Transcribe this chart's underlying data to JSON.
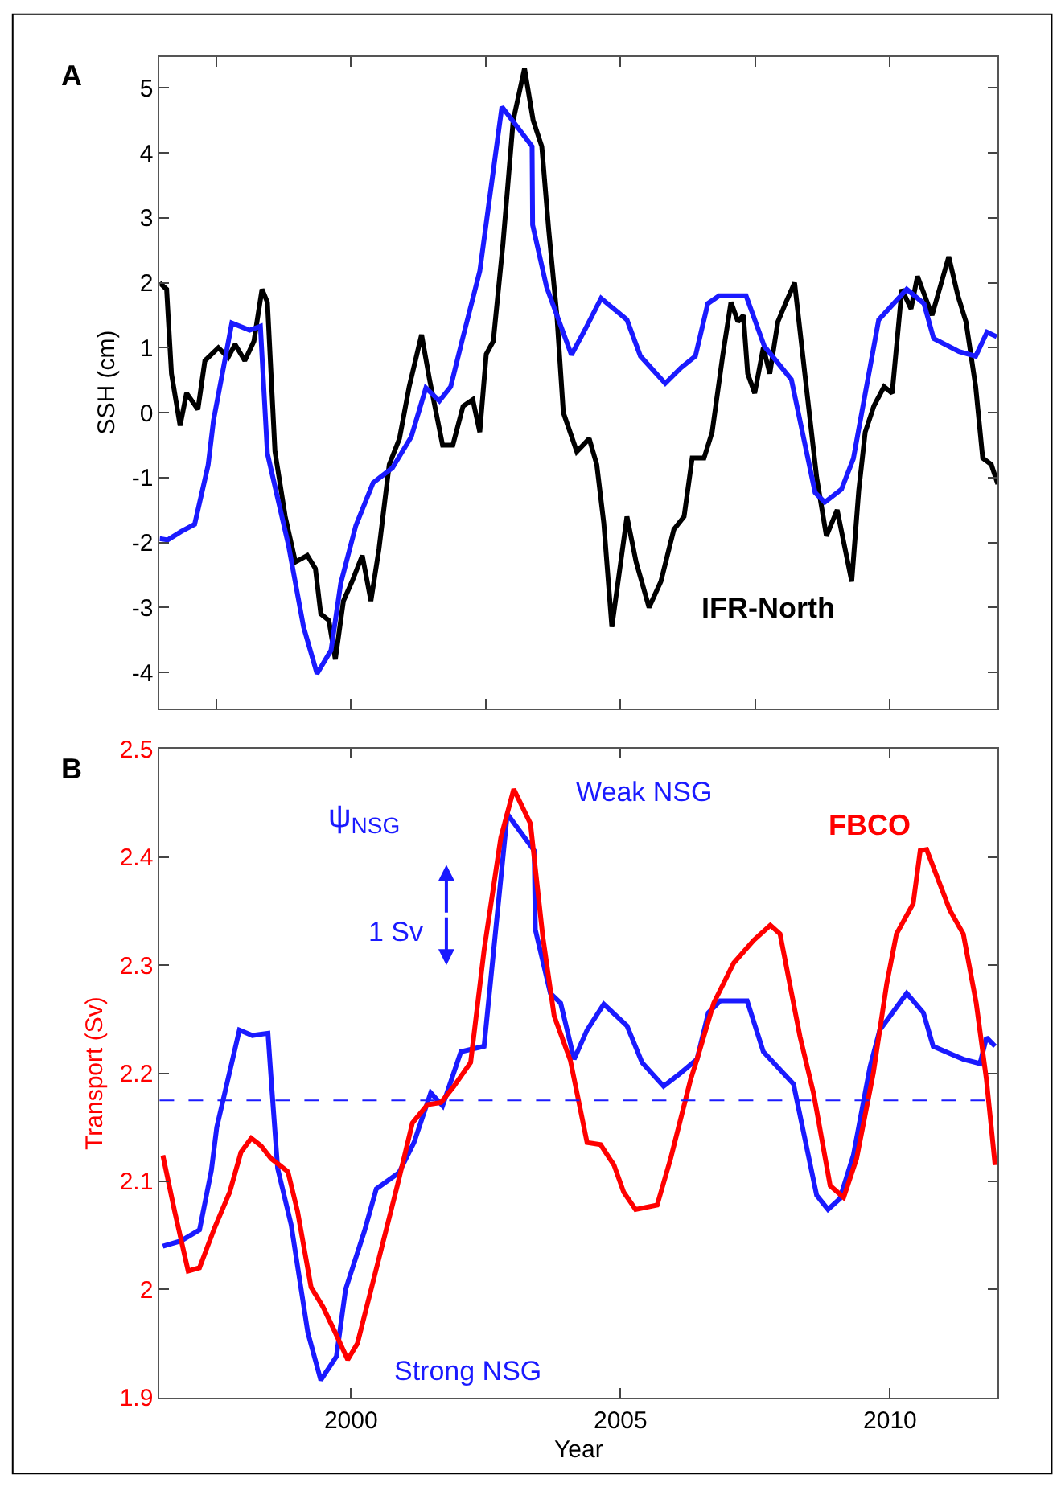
{
  "chart_data": [
    {
      "type": "line",
      "title": "A",
      "ylabel": "SSH (cm)",
      "xlim": [
        1996.45,
        2012.0
      ],
      "ylim": [
        -4.55,
        5.48
      ],
      "xticks": [
        {
          "value": 1997.5,
          "label": null
        },
        {
          "value": 2000,
          "label": null
        },
        {
          "value": 2002.5,
          "label": null
        },
        {
          "value": 2005,
          "label": null
        },
        {
          "value": 2007.5,
          "label": null
        },
        {
          "value": 2010,
          "label": null
        }
      ],
      "yticks": [
        -4,
        -3,
        -2,
        -1,
        0,
        1,
        2,
        3,
        4,
        5
      ],
      "tick_labels": "y",
      "grid": false,
      "legend": false,
      "marker": "none",
      "line_style": "solid",
      "series": [
        {
          "name": "IFR-North",
          "color": "#000000",
          "x": [
            1996.45,
            1996.58,
            1996.67,
            1996.83,
            1996.95,
            1997.16,
            1997.29,
            1997.54,
            1997.72,
            1997.85,
            1998.03,
            1998.2,
            1998.35,
            1998.45,
            1998.59,
            1998.78,
            1998.97,
            1999.19,
            1999.34,
            1999.44,
            1999.59,
            1999.71,
            1999.86,
            2000.02,
            2000.21,
            2000.37,
            2000.52,
            2000.71,
            2000.9,
            2001.08,
            2001.31,
            2001.46,
            2001.7,
            2001.89,
            2002.08,
            2002.26,
            2002.39,
            2002.51,
            2002.64,
            2002.82,
            2003.01,
            2003.22,
            2003.38,
            2003.54,
            2003.67,
            2003.82,
            2003.94,
            2004.19,
            2004.42,
            2004.56,
            2004.69,
            2004.84,
            2005.12,
            2005.29,
            2005.53,
            2005.75,
            2005.99,
            2006.18,
            2006.33,
            2006.55,
            2006.7,
            2006.9,
            2007.05,
            2007.18,
            2007.28,
            2007.36,
            2007.49,
            2007.65,
            2007.77,
            2007.92,
            2008.07,
            2008.23,
            2008.42,
            2008.64,
            2008.82,
            2009.02,
            2009.29,
            2009.42,
            2009.54,
            2009.7,
            2009.89,
            2010.04,
            2010.22,
            2010.39,
            2010.51,
            2010.78,
            2011.09,
            2011.26,
            2011.41,
            2011.59,
            2011.72,
            2011.88,
            2012.0
          ],
          "values": [
            2.0,
            1.9,
            0.6,
            -0.2,
            0.3,
            0.05,
            0.8,
            1.0,
            0.85,
            1.05,
            0.8,
            1.1,
            1.9,
            1.7,
            -0.6,
            -1.6,
            -2.3,
            -2.2,
            -2.4,
            -3.1,
            -3.2,
            -3.8,
            -2.9,
            -2.6,
            -2.2,
            -2.9,
            -2.1,
            -0.8,
            -0.4,
            0.4,
            1.2,
            0.5,
            -0.5,
            -0.5,
            0.1,
            0.2,
            -0.3,
            0.9,
            1.1,
            2.6,
            4.5,
            5.3,
            4.5,
            4.1,
            2.8,
            1.5,
            0.0,
            -0.6,
            -0.4,
            -0.8,
            -1.7,
            -3.3,
            -1.6,
            -2.3,
            -3.0,
            -2.6,
            -1.8,
            -1.6,
            -0.7,
            -0.7,
            -0.3,
            0.9,
            1.7,
            1.4,
            1.5,
            0.6,
            0.3,
            1.0,
            0.6,
            1.4,
            1.7,
            2.0,
            0.6,
            -1.0,
            -1.9,
            -1.5,
            -2.6,
            -1.2,
            -0.3,
            0.1,
            0.4,
            0.3,
            1.9,
            1.6,
            2.1,
            1.5,
            2.4,
            1.8,
            1.4,
            0.4,
            -0.7,
            -0.8,
            -1.1
          ]
        },
        {
          "color": "#1a1aff",
          "x": [
            1996.45,
            1996.6,
            1996.85,
            1997.1,
            1997.35,
            1997.45,
            1997.79,
            1998.12,
            1998.32,
            1998.45,
            1998.84,
            1999.12,
            1999.37,
            1999.63,
            1999.81,
            2000.09,
            2000.41,
            2000.77,
            2001.12,
            2001.39,
            2001.64,
            2001.85,
            2002.08,
            2002.39,
            2002.8,
            2003.36,
            2003.37,
            2003.63,
            2004.09,
            2004.35,
            2004.64,
            2005.12,
            2005.37,
            2005.83,
            2006.12,
            2006.39,
            2006.62,
            2006.83,
            2007.33,
            2007.67,
            2008.17,
            2008.61,
            2008.79,
            2009.1,
            2009.32,
            2009.79,
            2010.31,
            2010.63,
            2010.81,
            2011.28,
            2011.59,
            2011.8,
            2011.98
          ],
          "values": [
            -1.94,
            -1.96,
            -1.83,
            -1.72,
            -0.81,
            -0.12,
            1.38,
            1.27,
            1.33,
            -0.63,
            -2.04,
            -3.3,
            -4.02,
            -3.66,
            -2.63,
            -1.74,
            -1.08,
            -0.85,
            -0.37,
            0.38,
            0.18,
            0.4,
            1.17,
            2.18,
            4.71,
            4.1,
            2.89,
            1.93,
            0.89,
            1.29,
            1.76,
            1.43,
            0.87,
            0.45,
            0.69,
            0.87,
            1.68,
            1.8,
            1.8,
            1.02,
            0.51,
            -1.23,
            -1.38,
            -1.18,
            -0.71,
            1.43,
            1.9,
            1.68,
            1.14,
            0.94,
            0.87,
            1.24,
            1.17
          ]
        }
      ]
    },
    {
      "type": "line",
      "title": "B",
      "xlabel": "Year",
      "ylabel": "Transport (Sv)",
      "xlim": [
        1996.45,
        2012.0
      ],
      "ylim": [
        1.9,
        2.5
      ],
      "xticks": [
        2000,
        2005,
        2010
      ],
      "yticks": [
        1.9,
        2,
        2.1,
        2.2,
        2.3,
        2.4,
        2.5
      ],
      "grid": false,
      "legend": false,
      "marker": "none",
      "line_style": "solid",
      "ref_lines": [
        {
          "axis": "y",
          "value": 2.175,
          "color": "#1a1aff",
          "line_style": "dashed"
        }
      ],
      "annotations": [
        "Weak NSG",
        "Strong NSG",
        "1 Sv"
      ],
      "series": [
        {
          "name": "ψ$_{NSG}$",
          "color": "#1a1aff",
          "x": [
            1996.51,
            1996.85,
            1997.19,
            1997.41,
            1997.51,
            1997.93,
            1998.17,
            1998.46,
            1998.52,
            1998.64,
            1998.89,
            1999.2,
            1999.44,
            1999.73,
            1999.9,
            2000.25,
            2000.47,
            2000.89,
            2001.17,
            2001.48,
            2001.7,
            2002.04,
            2002.47,
            2002.9,
            2003.4,
            2003.42,
            2003.7,
            2003.89,
            2004.14,
            2004.38,
            2004.69,
            2005.12,
            2005.4,
            2005.8,
            2006.11,
            2006.42,
            2006.63,
            2006.85,
            2007.35,
            2007.65,
            2008.21,
            2008.64,
            2008.85,
            2009.07,
            2009.32,
            2009.63,
            2009.81,
            2010.31,
            2010.62,
            2010.8,
            2011.17,
            2011.36,
            2011.67,
            2011.79,
            2011.95
          ],
          "values": [
            2.04,
            2.045,
            2.055,
            2.11,
            2.15,
            2.24,
            2.235,
            2.237,
            2.194,
            2.112,
            2.06,
            1.96,
            1.916,
            1.938,
            2.0,
            2.054,
            2.093,
            2.108,
            2.136,
            2.182,
            2.17,
            2.22,
            2.225,
            2.44,
            2.406,
            2.333,
            2.274,
            2.265,
            2.213,
            2.24,
            2.264,
            2.244,
            2.21,
            2.188,
            2.2,
            2.213,
            2.256,
            2.267,
            2.267,
            2.22,
            2.19,
            2.087,
            2.074,
            2.084,
            2.124,
            2.206,
            2.24,
            2.274,
            2.256,
            2.225,
            2.217,
            2.213,
            2.209,
            2.233,
            2.225
          ]
        },
        {
          "name": "FBCO",
          "color": "#ff0000",
          "x": [
            1996.51,
            1996.73,
            1996.98,
            1997.19,
            1997.47,
            1997.75,
            1997.96,
            1998.15,
            1998.33,
            1998.52,
            1998.83,
            1999.01,
            1999.26,
            1999.48,
            1999.69,
            1999.94,
            2000.12,
            2000.49,
            2000.86,
            2001.14,
            2001.42,
            2001.67,
            2001.91,
            2002.22,
            2002.47,
            2002.78,
            2003.02,
            2003.33,
            2003.56,
            2003.77,
            2004.07,
            2004.38,
            2004.63,
            2004.88,
            2005.06,
            2005.28,
            2005.68,
            2005.93,
            2006.3,
            2006.42,
            2006.73,
            2007.1,
            2007.47,
            2007.78,
            2007.96,
            2008.33,
            2008.58,
            2008.89,
            2009.14,
            2009.38,
            2009.69,
            2009.94,
            2010.12,
            2010.43,
            2010.56,
            2010.68,
            2011.11,
            2011.36,
            2011.6,
            2011.79,
            2011.95
          ],
          "values": [
            2.124,
            2.072,
            2.017,
            2.02,
            2.057,
            2.09,
            2.127,
            2.14,
            2.133,
            2.121,
            2.109,
            2.072,
            2.002,
            1.984,
            1.962,
            1.935,
            1.95,
            2.023,
            2.096,
            2.154,
            2.171,
            2.173,
            2.188,
            2.21,
            2.314,
            2.418,
            2.463,
            2.431,
            2.326,
            2.253,
            2.212,
            2.136,
            2.134,
            2.115,
            2.09,
            2.074,
            2.078,
            2.121,
            2.194,
            2.213,
            2.265,
            2.302,
            2.323,
            2.337,
            2.329,
            2.234,
            2.182,
            2.096,
            2.085,
            2.121,
            2.2,
            2.283,
            2.329,
            2.357,
            2.406,
            2.407,
            2.351,
            2.329,
            2.265,
            2.194,
            2.115
          ]
        }
      ]
    }
  ]
}
